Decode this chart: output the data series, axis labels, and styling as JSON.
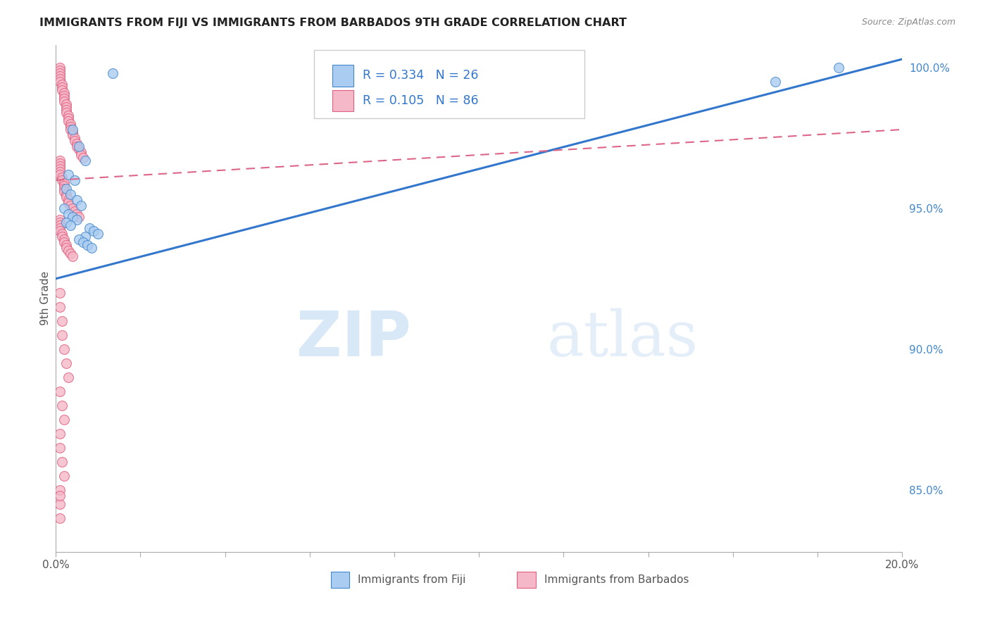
{
  "title": "IMMIGRANTS FROM FIJI VS IMMIGRANTS FROM BARBADOS 9TH GRADE CORRELATION CHART",
  "source": "Source: ZipAtlas.com",
  "ylabel": "9th Grade",
  "watermark_zip": "ZIP",
  "watermark_atlas": "atlas",
  "xlim": [
    0.0,
    0.2
  ],
  "ylim": [
    0.828,
    1.008
  ],
  "ytick_values_right": [
    0.85,
    0.9,
    0.95,
    1.0
  ],
  "ytick_labels_right": [
    "85.0%",
    "90.0%",
    "95.0%",
    "100.0%"
  ],
  "legend_fiji_label": "Immigrants from Fiji",
  "legend_barbados_label": "Immigrants from Barbados",
  "fiji_R": "0.334",
  "fiji_N": "26",
  "barbados_R": "0.105",
  "barbados_N": "86",
  "fiji_color": "#aaccf0",
  "barbados_color": "#f5b8c8",
  "fiji_edge_color": "#4488cc",
  "barbados_edge_color": "#e06080",
  "fiji_line_color": "#3377cc",
  "barbados_line_color": "#dd6688",
  "fiji_scatter_x": [
    0.0135,
    0.004,
    0.0055,
    0.007,
    0.003,
    0.0045,
    0.0025,
    0.0035,
    0.005,
    0.006,
    0.002,
    0.003,
    0.004,
    0.005,
    0.0025,
    0.0035,
    0.008,
    0.009,
    0.01,
    0.007,
    0.0055,
    0.0065,
    0.0075,
    0.0085,
    0.17,
    0.185
  ],
  "fiji_scatter_y": [
    0.998,
    0.978,
    0.972,
    0.967,
    0.962,
    0.96,
    0.957,
    0.955,
    0.953,
    0.951,
    0.95,
    0.948,
    0.947,
    0.946,
    0.945,
    0.944,
    0.943,
    0.942,
    0.941,
    0.94,
    0.939,
    0.938,
    0.937,
    0.936,
    0.995,
    1.0
  ],
  "barbados_scatter_x": [
    0.001,
    0.001,
    0.001,
    0.001,
    0.001,
    0.001,
    0.0015,
    0.0015,
    0.0015,
    0.002,
    0.002,
    0.002,
    0.002,
    0.0025,
    0.0025,
    0.0025,
    0.0025,
    0.003,
    0.003,
    0.003,
    0.0035,
    0.0035,
    0.0035,
    0.004,
    0.004,
    0.0045,
    0.0045,
    0.005,
    0.005,
    0.0055,
    0.006,
    0.006,
    0.0065,
    0.001,
    0.001,
    0.001,
    0.001,
    0.001,
    0.001,
    0.0015,
    0.0015,
    0.002,
    0.002,
    0.002,
    0.002,
    0.0025,
    0.0025,
    0.003,
    0.003,
    0.0035,
    0.004,
    0.0045,
    0.005,
    0.0055,
    0.001,
    0.001,
    0.001,
    0.001,
    0.001,
    0.0015,
    0.0015,
    0.002,
    0.002,
    0.0025,
    0.0025,
    0.003,
    0.0035,
    0.004,
    0.001,
    0.001,
    0.0015,
    0.0015,
    0.002,
    0.0025,
    0.003,
    0.001,
    0.0015,
    0.002,
    0.001,
    0.001,
    0.0015,
    0.002,
    0.001,
    0.001,
    0.001,
    0.001
  ],
  "barbados_scatter_y": [
    1.0,
    0.999,
    0.998,
    0.997,
    0.996,
    0.995,
    0.994,
    0.993,
    0.992,
    0.991,
    0.99,
    0.989,
    0.988,
    0.987,
    0.986,
    0.985,
    0.984,
    0.983,
    0.982,
    0.981,
    0.98,
    0.979,
    0.978,
    0.977,
    0.976,
    0.975,
    0.974,
    0.973,
    0.972,
    0.971,
    0.97,
    0.969,
    0.968,
    0.967,
    0.966,
    0.965,
    0.964,
    0.963,
    0.962,
    0.961,
    0.96,
    0.959,
    0.958,
    0.957,
    0.956,
    0.955,
    0.954,
    0.953,
    0.952,
    0.951,
    0.95,
    0.949,
    0.948,
    0.947,
    0.946,
    0.945,
    0.944,
    0.943,
    0.942,
    0.941,
    0.94,
    0.939,
    0.938,
    0.937,
    0.936,
    0.935,
    0.934,
    0.933,
    0.92,
    0.915,
    0.91,
    0.905,
    0.9,
    0.895,
    0.89,
    0.885,
    0.88,
    0.875,
    0.87,
    0.865,
    0.86,
    0.855,
    0.85,
    0.845,
    0.84,
    0.848
  ],
  "background_color": "#ffffff",
  "grid_color": "#cccccc",
  "fiji_line_x0": 0.0,
  "fiji_line_y0": 0.925,
  "fiji_line_x1": 0.2,
  "fiji_line_y1": 1.003,
  "barbados_line_x0": 0.0,
  "barbados_line_y0": 0.96,
  "barbados_line_x1": 0.2,
  "barbados_line_y1": 0.978
}
